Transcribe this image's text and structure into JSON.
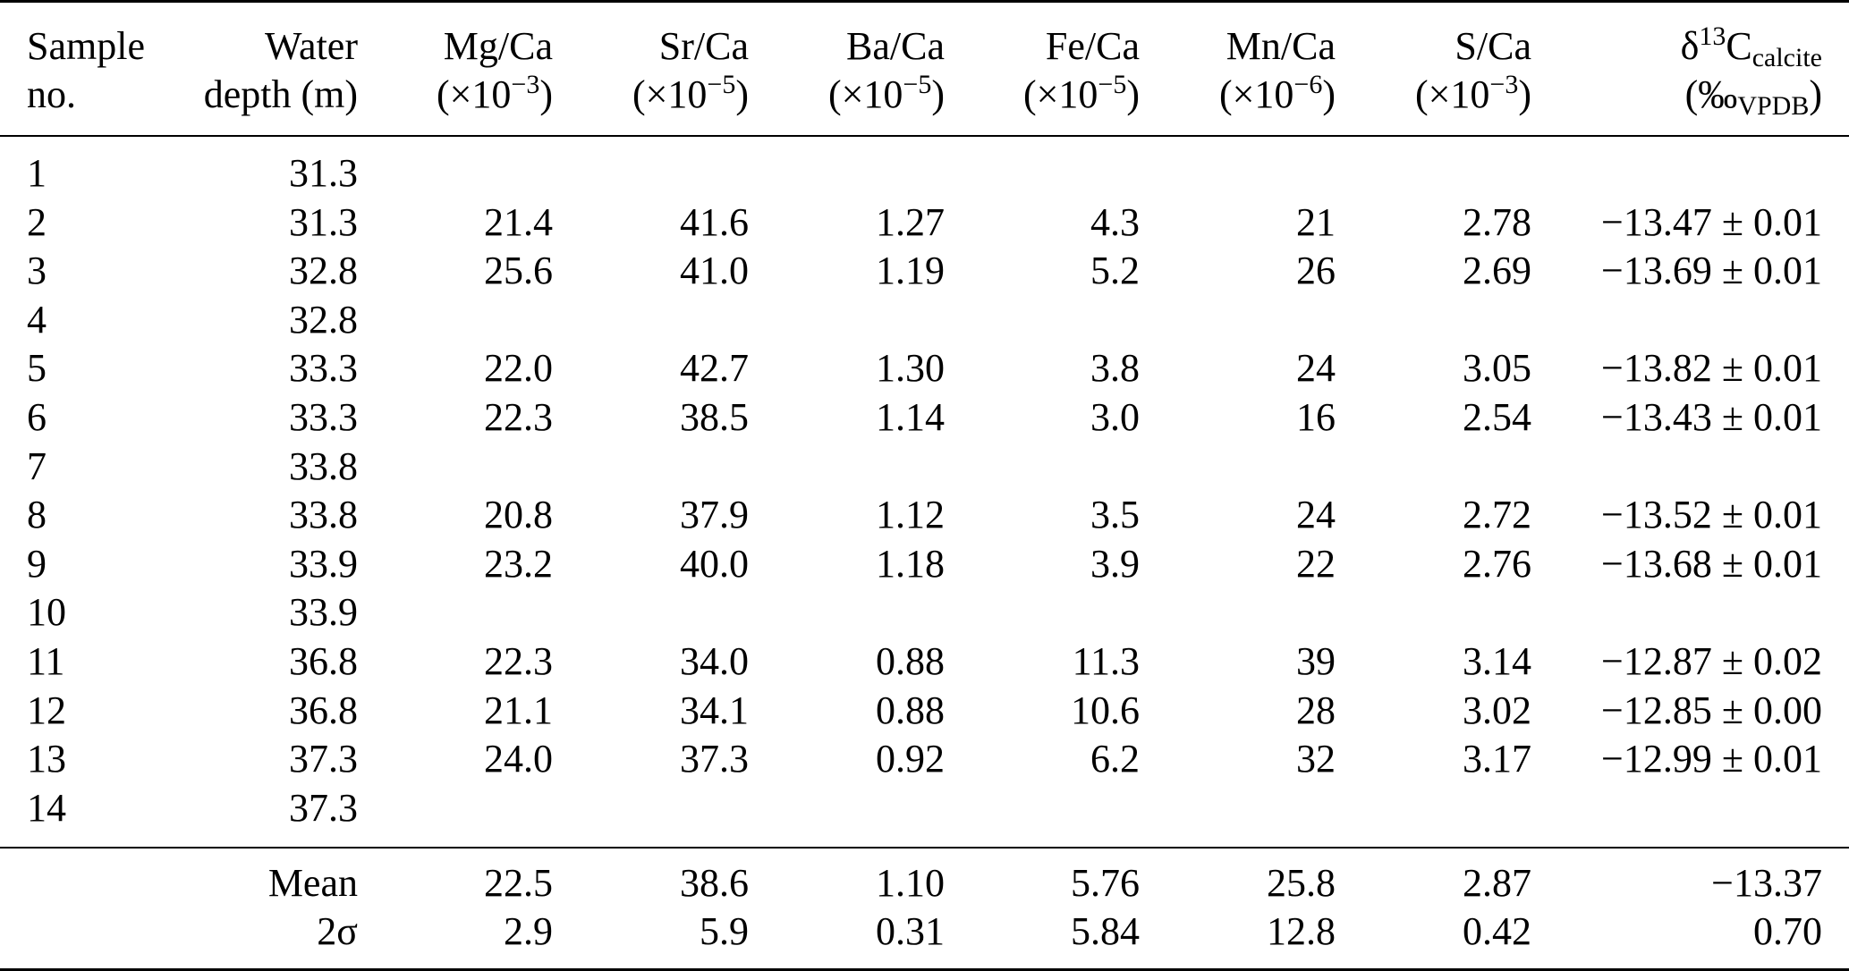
{
  "table": {
    "headers": [
      {
        "line1": "Sample",
        "line2": "no."
      },
      {
        "line1": "Water",
        "line2": "depth (m)"
      },
      {
        "line1": "Mg/Ca",
        "line2_pre": "(×10",
        "line2_sup": "−3",
        "line2_post": ")"
      },
      {
        "line1": "Sr/Ca",
        "line2_pre": "(×10",
        "line2_sup": "−5",
        "line2_post": ")"
      },
      {
        "line1": "Ba/Ca",
        "line2_pre": "(×10",
        "line2_sup": "−5",
        "line2_post": ")"
      },
      {
        "line1": "Fe/Ca",
        "line2_pre": "(×10",
        "line2_sup": "−5",
        "line2_post": ")"
      },
      {
        "line1": "Mn/Ca",
        "line2_pre": "(×10",
        "line2_sup": "−6",
        "line2_post": ")"
      },
      {
        "line1": "S/Ca",
        "line2_pre": "(×10",
        "line2_sup": "−3",
        "line2_post": ")"
      },
      {
        "line1_pre": "δ",
        "line1_sup": "13",
        "line1_mid": "C",
        "line1_sub": "calcite",
        "line2_pre": "(‰",
        "line2_sub": "VPDB",
        "line2_post": ")"
      }
    ],
    "rows": [
      [
        "1",
        "31.3",
        "",
        "",
        "",
        "",
        "",
        "",
        ""
      ],
      [
        "2",
        "31.3",
        "21.4",
        "41.6",
        "1.27",
        "4.3",
        "21",
        "2.78",
        "−13.47 ± 0.01"
      ],
      [
        "3",
        "32.8",
        "25.6",
        "41.0",
        "1.19",
        "5.2",
        "26",
        "2.69",
        "−13.69 ± 0.01"
      ],
      [
        "4",
        "32.8",
        "",
        "",
        "",
        "",
        "",
        "",
        ""
      ],
      [
        "5",
        "33.3",
        "22.0",
        "42.7",
        "1.30",
        "3.8",
        "24",
        "3.05",
        "−13.82 ± 0.01"
      ],
      [
        "6",
        "33.3",
        "22.3",
        "38.5",
        "1.14",
        "3.0",
        "16",
        "2.54",
        "−13.43 ± 0.01"
      ],
      [
        "7",
        "33.8",
        "",
        "",
        "",
        "",
        "",
        "",
        ""
      ],
      [
        "8",
        "33.8",
        "20.8",
        "37.9",
        "1.12",
        "3.5",
        "24",
        "2.72",
        "−13.52 ± 0.01"
      ],
      [
        "9",
        "33.9",
        "23.2",
        "40.0",
        "1.18",
        "3.9",
        "22",
        "2.76",
        "−13.68 ± 0.01"
      ],
      [
        "10",
        "33.9",
        "",
        "",
        "",
        "",
        "",
        "",
        ""
      ],
      [
        "11",
        "36.8",
        "22.3",
        "34.0",
        "0.88",
        "11.3",
        "39",
        "3.14",
        "−12.87 ± 0.02"
      ],
      [
        "12",
        "36.8",
        "21.1",
        "34.1",
        "0.88",
        "10.6",
        "28",
        "3.02",
        "−12.85 ± 0.00"
      ],
      [
        "13",
        "37.3",
        "24.0",
        "37.3",
        "0.92",
        "6.2",
        "32",
        "3.17",
        "−12.99 ± 0.01"
      ],
      [
        "14",
        "37.3",
        "",
        "",
        "",
        "",
        "",
        "",
        ""
      ]
    ],
    "stats": [
      [
        "",
        "Mean",
        "22.5",
        "38.6",
        "1.10",
        "5.76",
        "25.8",
        "2.87",
        "−13.37"
      ],
      [
        "",
        "2σ",
        "2.9",
        "5.9",
        "0.31",
        "5.84",
        "12.8",
        "0.42",
        "0.70"
      ]
    ]
  }
}
